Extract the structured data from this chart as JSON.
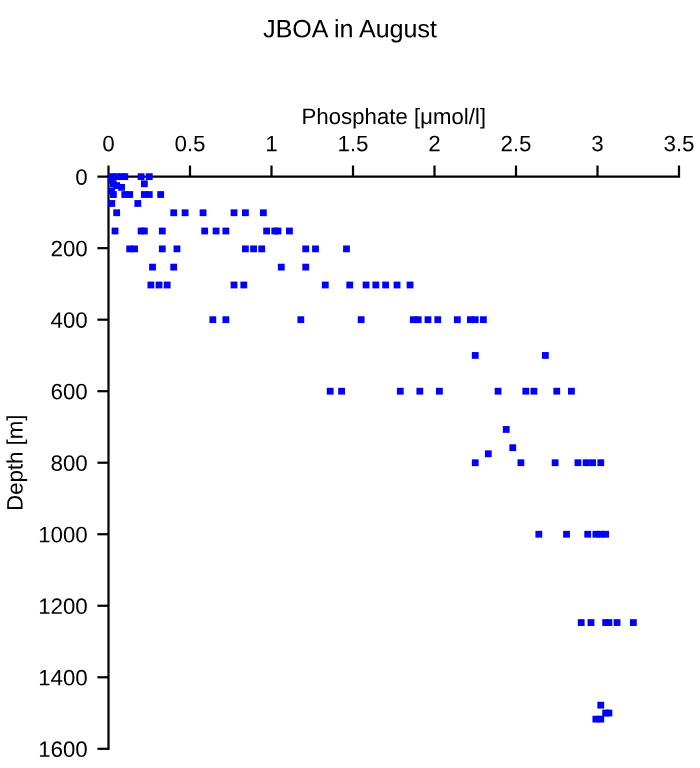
{
  "chart_data": {
    "type": "scatter",
    "title": "JBOA in August",
    "xlabel": "Phosphate [μmol/l]",
    "ylabel": "Depth [m]",
    "xlim": [
      0,
      3.5
    ],
    "xticks": [
      0,
      0.5,
      1,
      1.5,
      2,
      2.5,
      3,
      3.5
    ],
    "ylim": [
      1600,
      0
    ],
    "yticks": [
      0,
      200,
      400,
      600,
      800,
      1000,
      1200,
      1400,
      1600
    ],
    "grid": false,
    "marker": "square",
    "legend": false,
    "series": [
      {
        "color": "#0000ff",
        "x": [
          0.02,
          0.05,
          0.08,
          0.1,
          0.2,
          0.25,
          0.02,
          0.03,
          0.05,
          0.08,
          0.02,
          0.22,
          0.03,
          0.1,
          0.13,
          0.22,
          0.25,
          0.32,
          0.02,
          0.18,
          0.05,
          0.4,
          0.47,
          0.58,
          0.77,
          0.84,
          0.95,
          0.04,
          0.2,
          0.22,
          0.33,
          0.59,
          0.66,
          0.72,
          0.97,
          1.02,
          1.04,
          1.11,
          0.13,
          0.16,
          0.33,
          0.42,
          0.84,
          0.89,
          0.94,
          1.21,
          1.27,
          1.46,
          0.27,
          0.4,
          1.06,
          1.21,
          0.26,
          0.31,
          0.36,
          0.77,
          0.83,
          1.33,
          1.48,
          1.58,
          1.64,
          1.7,
          1.77,
          1.85,
          0.64,
          0.72,
          1.18,
          1.55,
          1.87,
          1.9,
          1.96,
          2.02,
          2.14,
          2.22,
          2.25,
          2.3,
          2.25,
          2.68,
          1.36,
          1.43,
          1.79,
          1.91,
          2.03,
          2.39,
          2.56,
          2.61,
          2.75,
          2.84,
          2.44,
          2.48,
          2.33,
          2.25,
          2.53,
          2.74,
          2.88,
          2.93,
          2.97,
          3.02,
          2.64,
          2.81,
          2.94,
          2.99,
          3.02,
          3.05,
          2.9,
          2.96,
          3.05,
          3.07,
          3.12,
          3.22,
          3.02,
          3.05,
          3.07,
          2.99,
          3.02
        ],
        "values": [
          0,
          0,
          0,
          0,
          0,
          0,
          10,
          20,
          25,
          30,
          40,
          20,
          50,
          50,
          50,
          50,
          50,
          50,
          75,
          75,
          101,
          101,
          101,
          101,
          101,
          101,
          101,
          152,
          152,
          152,
          152,
          152,
          152,
          152,
          152,
          152,
          152,
          152,
          202,
          202,
          202,
          202,
          202,
          202,
          202,
          202,
          202,
          202,
          253,
          253,
          253,
          253,
          303,
          303,
          303,
          303,
          303,
          303,
          303,
          303,
          303,
          303,
          303,
          303,
          400,
          400,
          400,
          400,
          400,
          400,
          400,
          400,
          400,
          400,
          400,
          400,
          500,
          500,
          600,
          600,
          600,
          600,
          600,
          600,
          600,
          600,
          600,
          600,
          707,
          758,
          775,
          800,
          800,
          800,
          800,
          800,
          800,
          800,
          1000,
          1000,
          1000,
          1000,
          1000,
          1000,
          1247,
          1247,
          1247,
          1247,
          1247,
          1247,
          1478,
          1500,
          1500,
          1517,
          1517
        ]
      }
    ]
  }
}
